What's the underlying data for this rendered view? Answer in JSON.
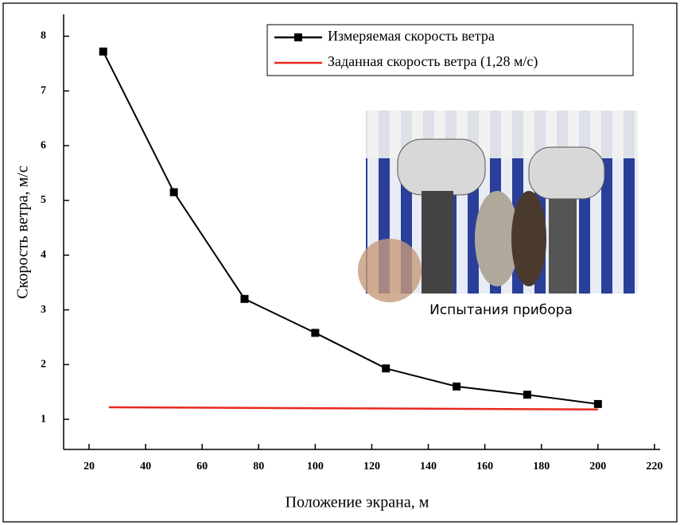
{
  "chart_data": {
    "type": "line",
    "x_label": "Положение экрана, м",
    "y_label": "Скорость ветра, м/с",
    "xlim": [
      11,
      222
    ],
    "ylim": [
      0.45,
      8.4
    ],
    "xticks": [
      20,
      40,
      60,
      80,
      100,
      120,
      140,
      160,
      180,
      200,
      220
    ],
    "yticks": [
      1,
      2,
      3,
      4,
      5,
      6,
      7,
      8
    ],
    "legend": "top-right",
    "image_caption": "Испытания прибора",
    "series": [
      {
        "name": "Измеряемая скорость ветра",
        "color": "#000000",
        "marker": "square",
        "x": [
          25,
          50,
          75,
          100,
          125,
          150,
          175,
          200
        ],
        "values": [
          7.72,
          5.15,
          3.2,
          2.58,
          1.93,
          1.6,
          1.45,
          1.28
        ]
      },
      {
        "name": "Заданная скорость ветра (1,28 м/с)",
        "color": "#e8281e",
        "marker": "none",
        "x": [
          27,
          200
        ],
        "values": [
          1.22,
          1.18
        ]
      }
    ]
  }
}
